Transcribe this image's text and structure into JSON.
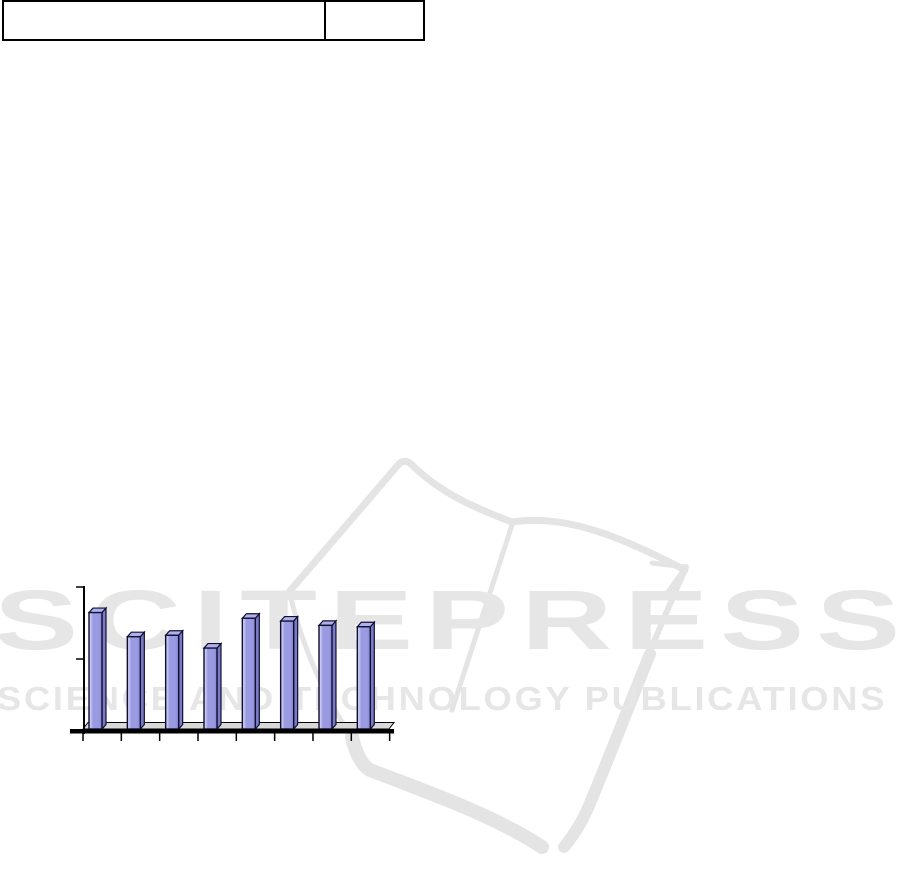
{
  "document": {
    "background_color": "#ffffff"
  },
  "header_table": {
    "border_color": "#000000",
    "cells": [
      {
        "text": ""
      },
      {
        "text": ""
      }
    ]
  },
  "watermark": {
    "title": "SCITEPRESS",
    "subtitle": "SCIENCE AND TECHNOLOGY PUBLICATIONS",
    "text_color": "#e6e6e6",
    "logo_color": "#e4e4e4",
    "logo": "open-book-logo"
  },
  "chart_data": {
    "type": "bar",
    "style": "3d-column",
    "title": "",
    "xlabel": "",
    "ylabel": "",
    "categories": [
      "",
      "",
      "",
      "",
      "",
      "",
      "",
      ""
    ],
    "values": [
      0.82,
      0.65,
      0.66,
      0.57,
      0.78,
      0.76,
      0.73,
      0.72
    ],
    "ylim": [
      0,
      1
    ],
    "y_tick_count": 3,
    "x_tick_count": 9,
    "grid": false,
    "legend": "none",
    "colors": {
      "bar_front": "#9a9ae2",
      "bar_front_highlight": "#ccccf2",
      "bar_front_shade": "#8686d2",
      "bar_side": "#7a7ac8",
      "bar_top": "#b0b0ee",
      "bar_outline": "#10102e",
      "floor_fill": "#d9d9d9",
      "axis": "#000000"
    }
  }
}
